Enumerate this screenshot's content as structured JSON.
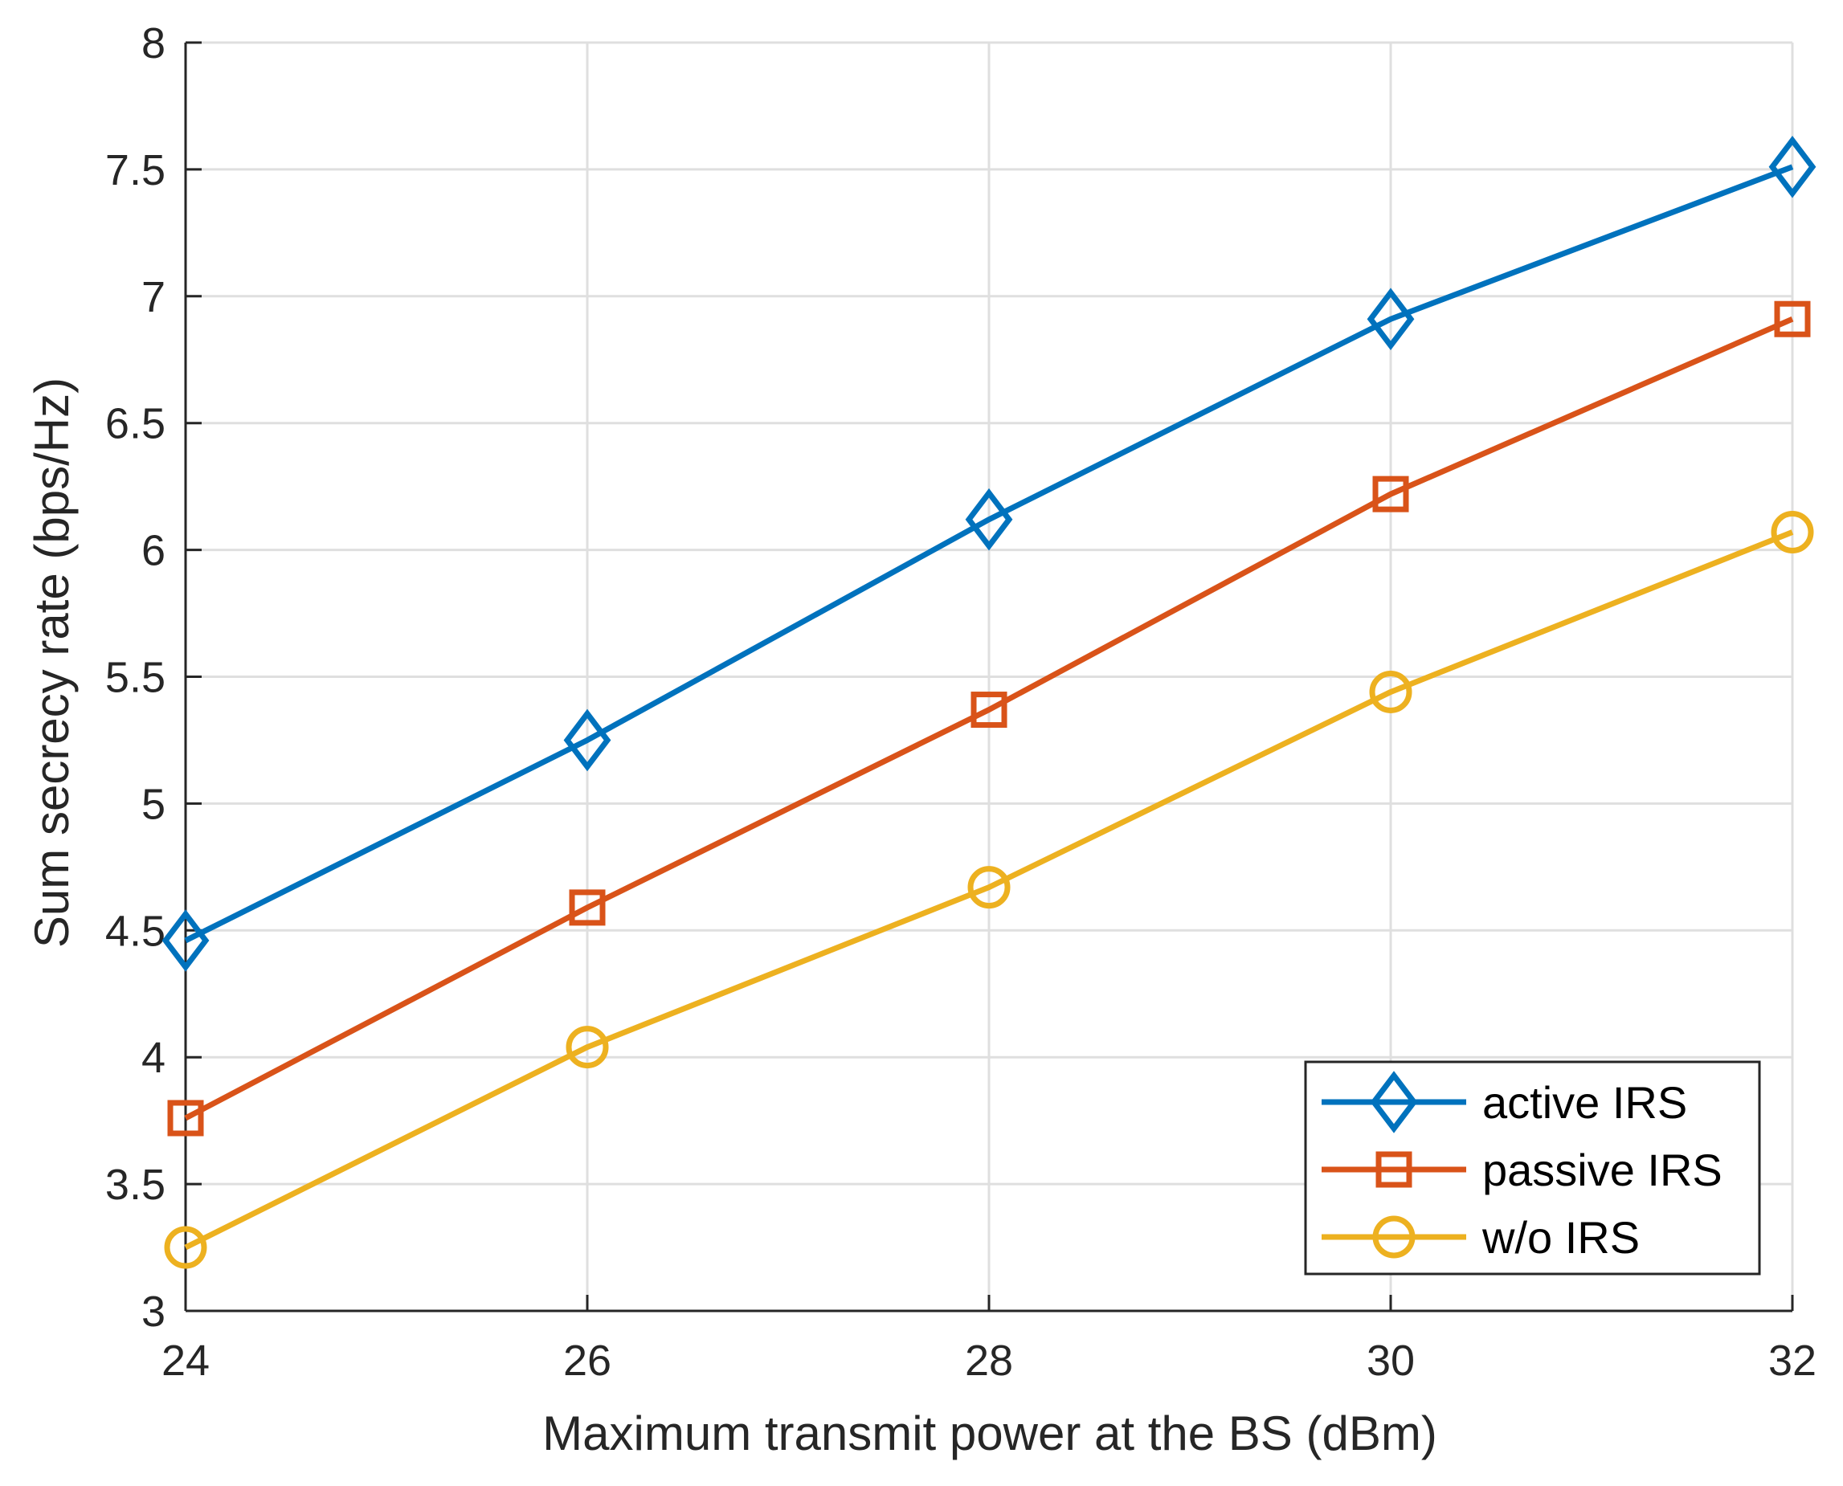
{
  "chart_data": {
    "type": "line",
    "title": "",
    "xlabel": "Maximum transmit power at the BS (dBm)",
    "ylabel": "Sum secrecy rate (bps/Hz)",
    "x": [
      24,
      26,
      28,
      30,
      32
    ],
    "xlim": [
      24,
      32
    ],
    "ylim": [
      3,
      8
    ],
    "xticks": [
      24,
      26,
      28,
      30,
      32
    ],
    "xtick_labels": [
      "24",
      "26",
      "28",
      "30",
      "32"
    ],
    "yticks": [
      3,
      3.5,
      4,
      4.5,
      5,
      5.5,
      6,
      6.5,
      7,
      7.5,
      8
    ],
    "ytick_labels": [
      "3",
      "3.5",
      "4",
      "4.5",
      "5",
      "5.5",
      "6",
      "6.5",
      "7",
      "7.5",
      "8"
    ],
    "grid": true,
    "legend_position": "bottom-right",
    "series": [
      {
        "name": "active IRS",
        "color": "#0072BD",
        "marker": "diamond",
        "values": [
          4.46,
          5.25,
          6.12,
          6.91,
          7.51
        ]
      },
      {
        "name": "passive IRS",
        "color": "#D95319",
        "marker": "square",
        "values": [
          3.76,
          4.59,
          5.37,
          6.22,
          6.91
        ]
      },
      {
        "name": "w/o IRS",
        "color": "#EDB120",
        "marker": "circle",
        "values": [
          3.25,
          4.04,
          4.67,
          5.44,
          6.07
        ]
      }
    ]
  }
}
